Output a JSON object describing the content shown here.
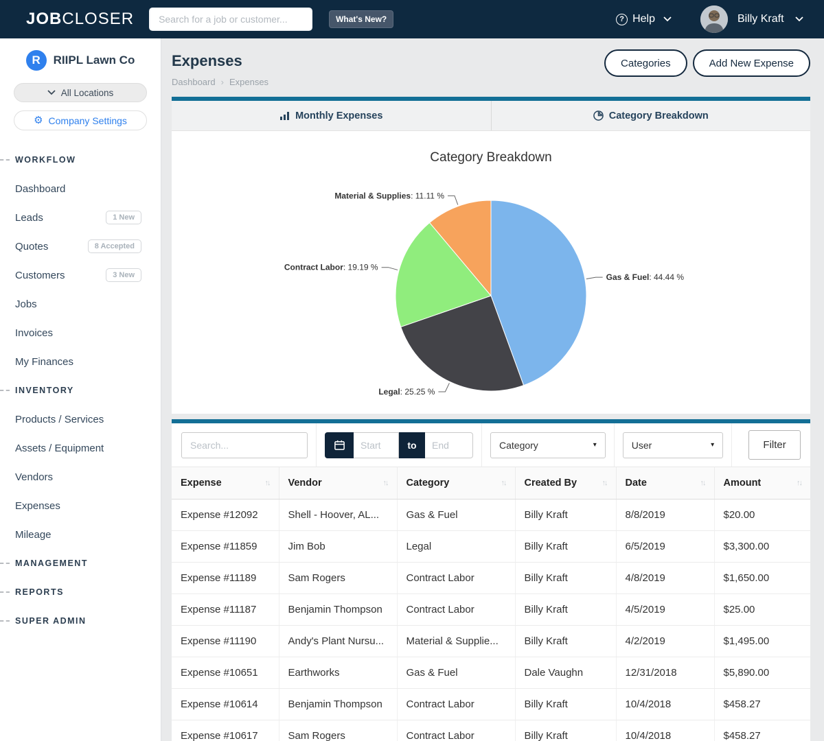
{
  "navbar": {
    "brand_bold": "JOB",
    "brand_light": "CLOSER",
    "search_placeholder": "Search for a job or customer...",
    "whats_new": "What's New?",
    "help": "Help",
    "user": "Billy Kraft"
  },
  "sidebar": {
    "company_initial": "R",
    "company_name": "RIIPL Lawn Co",
    "locations": "All Locations",
    "settings": "Company Settings",
    "sections": [
      {
        "title": "WORKFLOW",
        "items": [
          {
            "label": "Dashboard"
          },
          {
            "label": "Leads",
            "badge": "1 New"
          },
          {
            "label": "Quotes",
            "badge": "8 Accepted"
          },
          {
            "label": "Customers",
            "badge": "3 New"
          },
          {
            "label": "Jobs"
          },
          {
            "label": "Invoices"
          },
          {
            "label": "My Finances"
          }
        ]
      },
      {
        "title": "INVENTORY",
        "items": [
          {
            "label": "Products / Services"
          },
          {
            "label": "Assets / Equipment"
          },
          {
            "label": "Vendors"
          },
          {
            "label": "Expenses"
          },
          {
            "label": "Mileage"
          }
        ]
      },
      {
        "title": "MANAGEMENT",
        "items": []
      },
      {
        "title": "REPORTS",
        "items": []
      },
      {
        "title": "SUPER ADMIN",
        "items": []
      }
    ]
  },
  "page": {
    "title": "Expenses",
    "breadcrumb": {
      "0": "Dashboard",
      "1": "Expenses"
    },
    "actions": {
      "categories": "Categories",
      "add_new": "Add New Expense"
    }
  },
  "tabs": [
    {
      "label": "Monthly Expenses",
      "icon": "bar-chart-icon",
      "active": false
    },
    {
      "label": "Category Breakdown",
      "icon": "pie-chart-icon",
      "active": true
    }
  ],
  "chart_data": {
    "type": "pie",
    "title": "Category Breakdown",
    "direction": "clockwise",
    "start_angle_deg": 0,
    "value_suffix": " %",
    "legend": "off",
    "slices": [
      {
        "label": "Gas & Fuel",
        "value": 44.44,
        "color": "#7cb5ec"
      },
      {
        "label": "Legal",
        "value": 25.25,
        "color": "#434348"
      },
      {
        "label": "Contract Labor",
        "value": 19.19,
        "color": "#90ed7d"
      },
      {
        "label": "Material & Supplies",
        "value": 11.11,
        "color": "#f7a35c"
      }
    ]
  },
  "filters": {
    "search_placeholder": "Search...",
    "start_placeholder": "Start",
    "to_label": "to",
    "end_placeholder": "End",
    "category_value": "Category",
    "user_value": "User",
    "filter_button": "Filter"
  },
  "table": {
    "columns": [
      "Expense",
      "Vendor",
      "Category",
      "Created By",
      "Date",
      "Amount"
    ],
    "rows": [
      [
        "Expense #12092",
        "Shell - Hoover, AL...",
        "Gas & Fuel",
        "Billy Kraft",
        "8/8/2019",
        "$20.00"
      ],
      [
        "Expense #11859",
        "Jim Bob",
        "Legal",
        "Billy Kraft",
        "6/5/2019",
        "$3,300.00"
      ],
      [
        "Expense #11189",
        "Sam Rogers",
        "Contract Labor",
        "Billy Kraft",
        "4/8/2019",
        "$1,650.00"
      ],
      [
        "Expense #11187",
        "Benjamin Thompson",
        "Contract Labor",
        "Billy Kraft",
        "4/5/2019",
        "$25.00"
      ],
      [
        "Expense #11190",
        "Andy's Plant Nursu...",
        "Material & Supplie...",
        "Billy Kraft",
        "4/2/2019",
        "$1,495.00"
      ],
      [
        "Expense #10651",
        "Earthworks",
        "Gas & Fuel",
        "Dale Vaughn",
        "12/31/2018",
        "$5,890.00"
      ],
      [
        "Expense #10614",
        "Benjamin Thompson",
        "Contract Labor",
        "Billy Kraft",
        "10/4/2018",
        "$458.27"
      ],
      [
        "Expense #10617",
        "Sam Rogers",
        "Contract Labor",
        "Billy Kraft",
        "10/4/2018",
        "$458.27"
      ]
    ]
  },
  "colors": {
    "navbar_bg": "#0e2940",
    "accent_teal": "#136f96",
    "navy": "#0f2439",
    "link_blue": "#3d7fd9",
    "brand_blue": "#2f80ed"
  }
}
